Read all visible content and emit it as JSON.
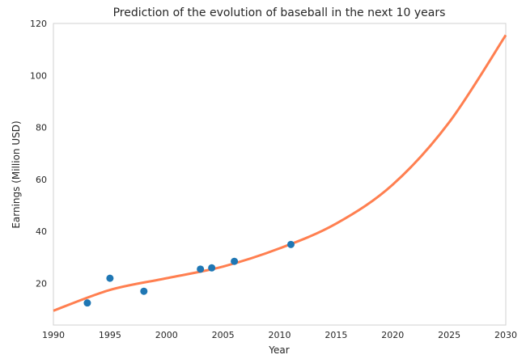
{
  "chart_data": {
    "type": "scatter",
    "title": "Prediction of the evolution of baseball in the next 10 years",
    "xlabel": "Year",
    "ylabel": "Earnings (Million USD)",
    "xlim": [
      1990,
      2030
    ],
    "ylim": [
      4,
      120
    ],
    "grid": false,
    "x_ticks": [
      1990,
      1995,
      2000,
      2005,
      2010,
      2015,
      2020,
      2025,
      2030
    ],
    "y_ticks": [
      20,
      40,
      60,
      80,
      100,
      120
    ],
    "series": [
      {
        "kind": "scatter",
        "color": "#1f77b4",
        "points": [
          {
            "x": 1993,
            "y": 12.5
          },
          {
            "x": 1995,
            "y": 22.0
          },
          {
            "x": 1998,
            "y": 17.0
          },
          {
            "x": 2003,
            "y": 25.5
          },
          {
            "x": 2004,
            "y": 26.0
          },
          {
            "x": 2006,
            "y": 28.5
          },
          {
            "x": 2011,
            "y": 35.0
          }
        ]
      },
      {
        "kind": "line",
        "color": "#ff7f50",
        "points": [
          {
            "x": 1990,
            "y": 9.5
          },
          {
            "x": 1995,
            "y": 17.5
          },
          {
            "x": 2000,
            "y": 22.0
          },
          {
            "x": 2005,
            "y": 26.5
          },
          {
            "x": 2010,
            "y": 33.5
          },
          {
            "x": 2015,
            "y": 43.0
          },
          {
            "x": 2020,
            "y": 58.0
          },
          {
            "x": 2025,
            "y": 82.0
          },
          {
            "x": 2030,
            "y": 115.5
          }
        ]
      }
    ]
  }
}
